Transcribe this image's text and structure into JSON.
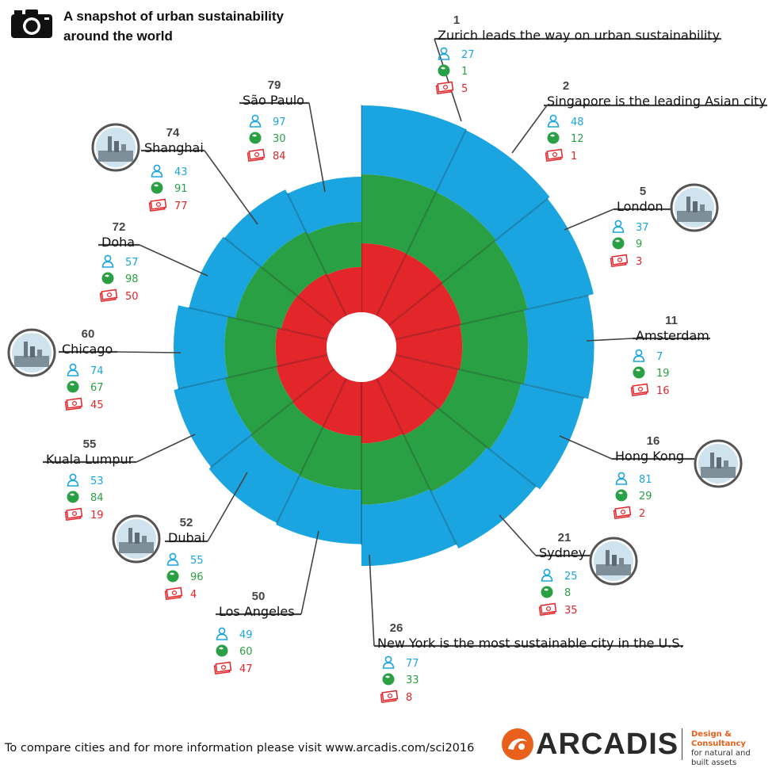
{
  "title_line1": "A snapshot of urban sustainability",
  "title_line2": "around the world",
  "footer": "To compare cities and for more information please visit  www.arcadis.com/sci2016",
  "brand": "ARCADIS",
  "tagline": [
    "Design & Consultancy",
    "for natural and",
    "built assets"
  ],
  "colors": {
    "people": "#1aa5e0",
    "planet": "#2aa044",
    "profit": "#e2262a",
    "leader": "#444444"
  },
  "icons": {
    "people": "person-icon",
    "planet": "globe-icon",
    "profit": "banknote-icon",
    "photo": "city-photo-icon",
    "camera": "camera-icon",
    "logo": "arcadis-logo-icon"
  },
  "chart_data": {
    "type": "polar-bar",
    "series": [
      {
        "name": "People",
        "color": "#1aa5e0"
      },
      {
        "name": "Planet",
        "color": "#2aa044"
      },
      {
        "name": "Profit",
        "color": "#e2262a"
      }
    ],
    "cities": [
      {
        "rank": "1",
        "name": "Zurich",
        "label": "Zurich leads the way on urban sustainability",
        "people": "27",
        "planet": "1",
        "profit": "5",
        "photo": false
      },
      {
        "rank": "2",
        "name": "Singapore",
        "label": "Singapore is the leading Asian city",
        "people": "48",
        "planet": "12",
        "profit": "1",
        "photo": false
      },
      {
        "rank": "5",
        "name": "London",
        "label": "London",
        "people": "37",
        "planet": "9",
        "profit": "3",
        "photo": true
      },
      {
        "rank": "11",
        "name": "Amsterdam",
        "label": "Amsterdam",
        "people": "7",
        "planet": "19",
        "profit": "16",
        "photo": false
      },
      {
        "rank": "16",
        "name": "Hong Kong",
        "label": "Hong Kong",
        "people": "81",
        "planet": "29",
        "profit": "2",
        "photo": true
      },
      {
        "rank": "21",
        "name": "Sydney",
        "label": "Sydney",
        "people": "25",
        "planet": "8",
        "profit": "35",
        "photo": true
      },
      {
        "rank": "26",
        "name": "New York",
        "label": "New York is the most sustainable city in the U.S.",
        "people": "77",
        "planet": "33",
        "profit": "8",
        "photo": false
      },
      {
        "rank": "50",
        "name": "Los Angeles",
        "label": "Los Angeles",
        "people": "49",
        "planet": "60",
        "profit": "47",
        "photo": false
      },
      {
        "rank": "52",
        "name": "Dubai",
        "label": "Dubai",
        "people": "55",
        "planet": "96",
        "profit": "4",
        "photo": true
      },
      {
        "rank": "55",
        "name": "Kuala Lumpur",
        "label": "Kuala Lumpur",
        "people": "53",
        "planet": "84",
        "profit": "19",
        "photo": false
      },
      {
        "rank": "60",
        "name": "Chicago",
        "label": "Chicago",
        "people": "74",
        "planet": "67",
        "profit": "45",
        "photo": true
      },
      {
        "rank": "72",
        "name": "Doha",
        "label": "Doha",
        "people": "57",
        "planet": "98",
        "profit": "50",
        "photo": false
      },
      {
        "rank": "74",
        "name": "Shanghai",
        "label": "Shanghai",
        "people": "43",
        "planet": "91",
        "profit": "77",
        "photo": true
      },
      {
        "rank": "79",
        "name": "São Paulo",
        "label": "São Paulo",
        "people": "97",
        "planet": "30",
        "profit": "84",
        "photo": false
      }
    ]
  }
}
